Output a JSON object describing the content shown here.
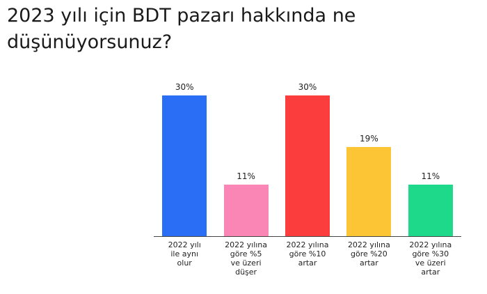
{
  "chart_data": {
    "type": "bar",
    "title": "2023 yılı için BDT pazarı hakkında ne düşünüyorsunuz?",
    "categories": [
      "2022 yılı\nile aynı\nolur",
      "2022 yılına\ngöre %5\nve üzeri\ndüşer",
      "2022 yılına\ngöre %10\nartar",
      "2022 yılına\ngöre %20\nartar",
      "2022 yılına\ngöre %30\nve üzeri\nartar"
    ],
    "values": [
      30,
      11,
      30,
      19,
      11
    ],
    "value_labels": [
      "30%",
      "11%",
      "30%",
      "19%",
      "11%"
    ],
    "colors": [
      "#2a6ef5",
      "#f986b4",
      "#fc3d3d",
      "#fcc535",
      "#1ed98a"
    ]
  }
}
